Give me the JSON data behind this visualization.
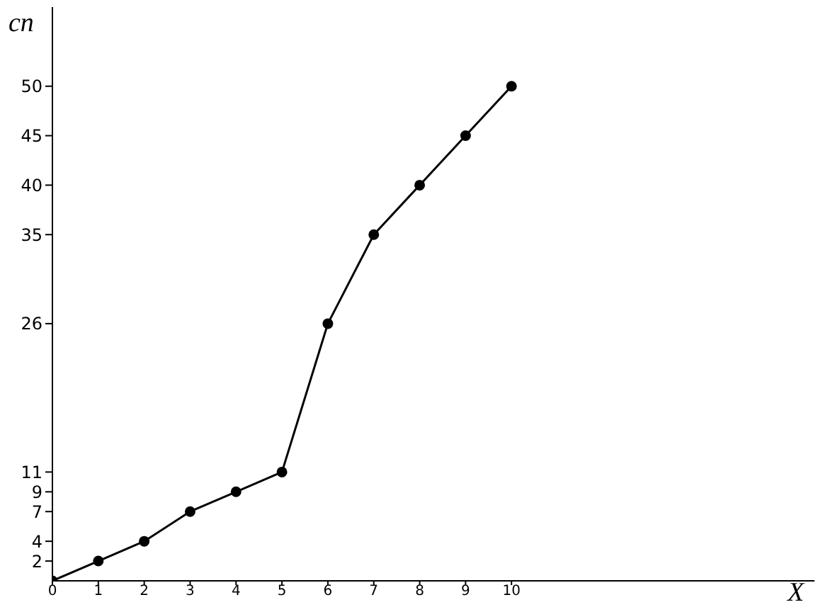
{
  "chart_data": {
    "type": "line",
    "xlabel": "X",
    "ylabel": "cn",
    "x": [
      0,
      1,
      2,
      3,
      4,
      5,
      6,
      7,
      8,
      9,
      10
    ],
    "values": [
      0,
      2,
      4,
      7,
      9,
      11,
      26,
      35,
      40,
      45,
      50
    ],
    "color": "#000000",
    "marker": "circle",
    "line_style": "solid",
    "grid": false,
    "xlim": [
      0,
      16.6
    ],
    "xticks": [
      0,
      1,
      2,
      3,
      4,
      5,
      6,
      7,
      8,
      9,
      10
    ],
    "ylim": [
      0,
      58
    ],
    "yticks": [
      2,
      4,
      7,
      9,
      11,
      26,
      35,
      40,
      45,
      50
    ]
  }
}
